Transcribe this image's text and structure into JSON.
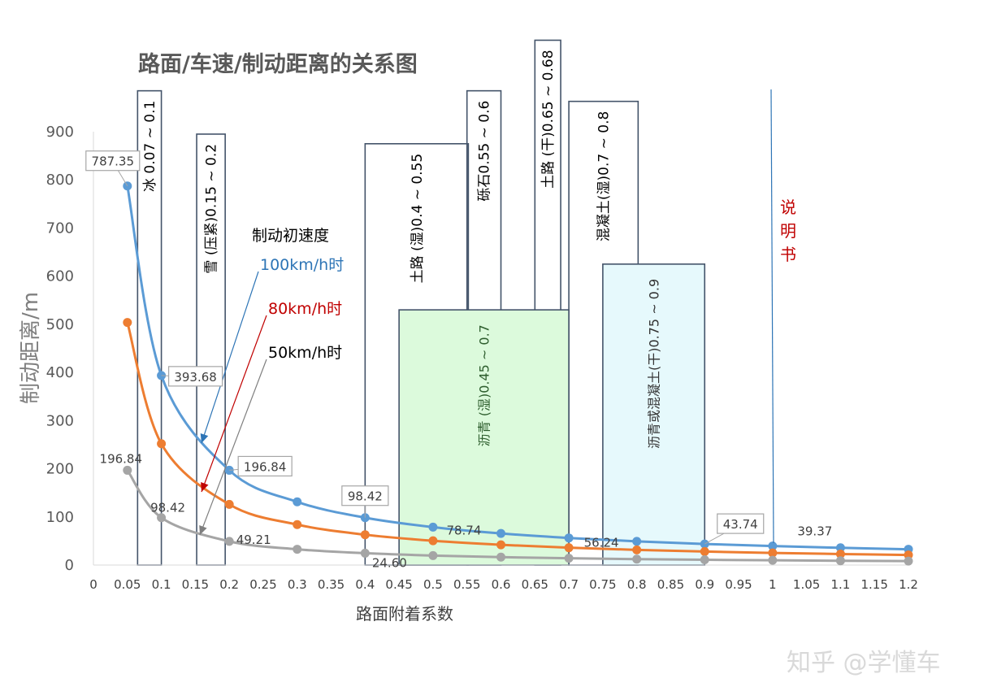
{
  "chart_data": {
    "type": "line",
    "title": "路面/车速/制动距离的关系图",
    "xlabel": "路面附着系数",
    "ylabel": "制动距离/m",
    "xlim": [
      0,
      1.2
    ],
    "ylim": [
      0,
      900
    ],
    "x_ticks": [
      "0",
      "0.05",
      "0.1",
      "0.15",
      "0.2",
      "0.25",
      "0.3",
      "0.35",
      "0.4",
      "0.45",
      "0.5",
      "0.55",
      "0.6",
      "0.65",
      "0.7",
      "0.75",
      "0.8",
      "0.85",
      "0.9",
      "0.95",
      "1",
      "1.05",
      "1.1",
      "1.15",
      "1.2"
    ],
    "y_ticks": [
      "0",
      "100",
      "200",
      "300",
      "400",
      "500",
      "600",
      "700",
      "800",
      "900"
    ],
    "x": [
      0.05,
      0.1,
      0.2,
      0.3,
      0.4,
      0.5,
      0.6,
      0.7,
      0.8,
      0.9,
      1.0,
      1.1,
      1.2
    ],
    "series": [
      {
        "name": "100km/h时",
        "color": "#5b9bd5",
        "values": [
          787.35,
          393.68,
          196.84,
          131.23,
          98.42,
          78.74,
          65.61,
          56.24,
          49.21,
          43.74,
          39.37,
          35.79,
          32.81
        ]
      },
      {
        "name": "80km/h时",
        "color": "#ed7d31",
        "values": [
          503.9,
          251.95,
          125.98,
          83.99,
          62.99,
          50.39,
          41.99,
          35.99,
          31.49,
          28.0,
          25.2,
          22.9,
          21.0
        ]
      },
      {
        "name": "50km/h时",
        "color": "#a5a5a5",
        "values": [
          196.84,
          98.42,
          49.21,
          32.81,
          24.6,
          19.68,
          16.4,
          14.06,
          12.3,
          10.94,
          9.84,
          8.95,
          8.2
        ]
      }
    ],
    "legend_title": "制动初速度",
    "legend_colors": [
      "#2e75b6",
      "#c00000",
      "#000000"
    ],
    "data_labels": [
      {
        "series": 0,
        "x": 0.05,
        "text": "787.35",
        "boxed": true
      },
      {
        "series": 0,
        "x": 0.1,
        "text": "393.68",
        "boxed": true
      },
      {
        "series": 0,
        "x": 0.2,
        "text": "196.84",
        "boxed": true
      },
      {
        "series": 0,
        "x": 0.4,
        "text": "98.42",
        "boxed": true
      },
      {
        "series": 0,
        "x": 0.5,
        "text": "78.74",
        "boxed": false
      },
      {
        "series": 0,
        "x": 0.7,
        "text": "56.24",
        "boxed": false
      },
      {
        "series": 0,
        "x": 0.9,
        "text": "43.74",
        "boxed": true
      },
      {
        "series": 0,
        "x": 1.0,
        "text": "39.37",
        "boxed": false
      },
      {
        "series": 2,
        "x": 0.05,
        "text": "196.84",
        "boxed": false
      },
      {
        "series": 2,
        "x": 0.1,
        "text": "98.42",
        "boxed": false
      },
      {
        "series": 2,
        "x": 0.2,
        "text": "49.21",
        "boxed": false
      },
      {
        "series": 2,
        "x": 0.4,
        "text": "24.60",
        "boxed": false
      }
    ],
    "zones": [
      {
        "label": "冰 0.07 ~ 0.1",
        "x0": 0.065,
        "x1": 0.1,
        "top": 985,
        "fill": "none"
      },
      {
        "label": "雪 (压紧)0.15 ~ 0.2",
        "x0": 0.152,
        "x1": 0.194,
        "top": 895,
        "fill": "none"
      },
      {
        "label": "土路 (湿)0.4 ~ 0.55",
        "x0": 0.4,
        "x1": 0.552,
        "top": 875,
        "fill": "none"
      },
      {
        "label": "砾石0.55 ~ 0.6",
        "x0": 0.55,
        "x1": 0.6,
        "top": 985,
        "fill": "none"
      },
      {
        "label": "土路 (干)0.65 ~ 0.68",
        "x0": 0.65,
        "x1": 0.688,
        "top": 1090,
        "fill": "none"
      },
      {
        "label": "混凝土(湿)0.7 ~ 0.8",
        "x0": 0.7,
        "x1": 0.802,
        "top": 963,
        "fill": "none"
      },
      {
        "label": "沥青 (湿)0.45 ~ 0.7",
        "x0": 0.45,
        "x1": 0.7,
        "top": 530,
        "fill": "#dcfadc"
      },
      {
        "label": "沥青或混凝土(干)0.75 ~ 0.9",
        "x0": 0.75,
        "x1": 0.9,
        "top": 625,
        "fill": "#e6f9fc"
      }
    ],
    "note": "说明书"
  },
  "watermark": "知乎 @学懂车"
}
